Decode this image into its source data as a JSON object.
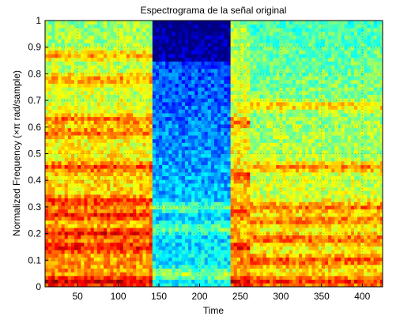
{
  "chart_data": {
    "type": "heatmap",
    "title": "Espectrograma de la señal original",
    "xlabel": "Time",
    "ylabel": "Normalized Frequency  (×π rad/sample)",
    "xlim": [
      10,
      425
    ],
    "ylim": [
      0,
      1
    ],
    "xticks": [
      50,
      100,
      150,
      200,
      250,
      300,
      350,
      400
    ],
    "yticks": [
      0,
      0.1,
      0.2,
      0.3,
      0.4,
      0.5,
      0.6,
      0.7,
      0.8,
      0.9,
      1
    ],
    "xtick_labels": [
      "50",
      "100",
      "150",
      "200",
      "250",
      "300",
      "350",
      "400"
    ],
    "ytick_labels": [
      "0",
      "0.1",
      "0.2",
      "0.3",
      "0.4",
      "0.5",
      "0.6",
      "0.7",
      "0.8",
      "0.9",
      "1"
    ],
    "colormap": "jet",
    "grid": true,
    "time_segments": [
      {
        "x_start": 10,
        "x_end": 140,
        "intensity": "high",
        "harmonic_bands": [
          0.02,
          0.15,
          0.2,
          0.27,
          0.32,
          0.45,
          0.58,
          0.63,
          0.78,
          0.87
        ]
      },
      {
        "x_start": 140,
        "x_end": 235,
        "intensity": "low",
        "harmonic_bands": [
          0.05,
          0.22,
          0.3
        ]
      },
      {
        "x_start": 235,
        "x_end": 262,
        "intensity": "high",
        "harmonic_bands": [
          0.02,
          0.15,
          0.28,
          0.42,
          0.62
        ]
      },
      {
        "x_start": 262,
        "x_end": 425,
        "intensity": "medium-high",
        "harmonic_bands": [
          0.02,
          0.1,
          0.18,
          0.25,
          0.3,
          0.45,
          0.68
        ]
      }
    ]
  }
}
